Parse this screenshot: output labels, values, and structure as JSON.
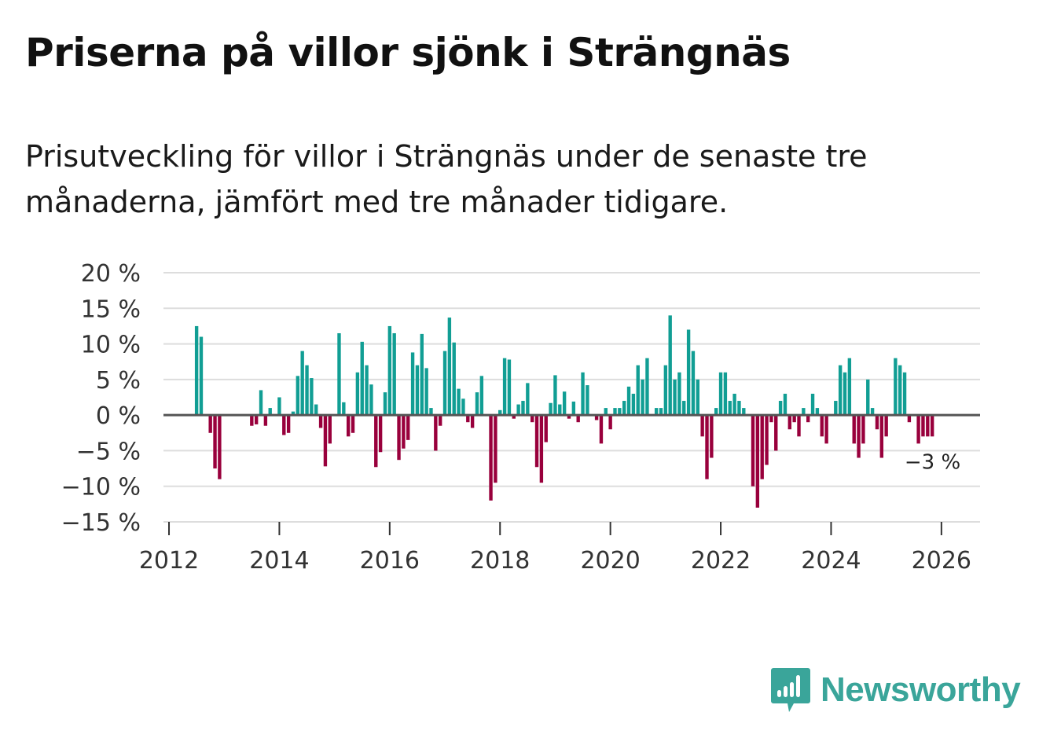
{
  "title": "Priserna på villor sjönk i Strängnäs",
  "subtitle": "Prisutveckling för villor i Strängnäs under de senaste tre månaderna, jämfört med tre månader tidigare.",
  "brand": "Newsworthy",
  "colors": {
    "positive": "#119e94",
    "negative": "#99003c",
    "grid": "#dddddd",
    "zero": "#555555"
  },
  "chart_data": {
    "type": "bar",
    "title": "Priserna på villor sjönk i Strängnäs",
    "xlabel": "",
    "ylabel": "",
    "ylim": [
      -15,
      20
    ],
    "xlim": [
      2011.9,
      2026.7
    ],
    "yticks": [
      20,
      15,
      10,
      5,
      0,
      -5,
      -10,
      -15
    ],
    "ytick_labels": [
      "20 %",
      "15 %",
      "10 %",
      "5 %",
      "0 %",
      "−5 %",
      "−10 %",
      "−15 %"
    ],
    "xticks": [
      2012,
      2014,
      2016,
      2018,
      2020,
      2022,
      2024,
      2026
    ],
    "xtick_labels": [
      "2012",
      "2014",
      "2016",
      "2018",
      "2020",
      "2022",
      "2024",
      "2026"
    ],
    "start": "2012-07",
    "values": [
      12.5,
      11,
      null,
      -2.5,
      -7.5,
      -9,
      null,
      null,
      null,
      null,
      null,
      null,
      -1.5,
      -1.3,
      3.5,
      -1.5,
      1,
      null,
      2.5,
      -2.8,
      -2.5,
      0.5,
      5.5,
      9,
      7,
      5.2,
      1.5,
      -1.8,
      -7.2,
      -4,
      null,
      11.5,
      1.8,
      -3,
      -2.5,
      6,
      10.3,
      7,
      4.3,
      -7.3,
      -5.2,
      3.2,
      12.5,
      11.5,
      -6.3,
      -4.7,
      -3.5,
      8.8,
      7,
      11.4,
      6.6,
      1,
      -5,
      -1.5,
      9,
      13.7,
      10.2,
      3.7,
      2.3,
      -1,
      -1.8,
      3.2,
      5.5,
      null,
      -12,
      -9.5,
      0.7,
      8,
      7.8,
      -0.5,
      1.5,
      2,
      4.5,
      -1,
      -7.3,
      -9.5,
      -3.8,
      1.7,
      5.6,
      1.5,
      3.3,
      -0.5,
      1.9,
      -1,
      6,
      4.2,
      null,
      -0.7,
      -4,
      1,
      -2,
      1,
      1,
      2,
      4,
      3,
      7,
      5,
      8,
      null,
      1,
      1,
      7,
      14,
      5,
      6,
      2,
      12,
      9,
      5,
      -3,
      -9,
      -6,
      1,
      6,
      6,
      2,
      3,
      2,
      1,
      null,
      -10,
      -13,
      -9,
      -7,
      -1,
      -5,
      2,
      3,
      -2,
      -1,
      -3,
      1,
      -1,
      3,
      1,
      -3,
      -4,
      null,
      2,
      7,
      6,
      8,
      -4,
      -6,
      -4,
      5,
      1,
      -2,
      -6,
      -3,
      null,
      8,
      7,
      6,
      -1,
      null,
      -4,
      -3,
      -3,
      -3
    ],
    "annotation": "−3 %"
  }
}
